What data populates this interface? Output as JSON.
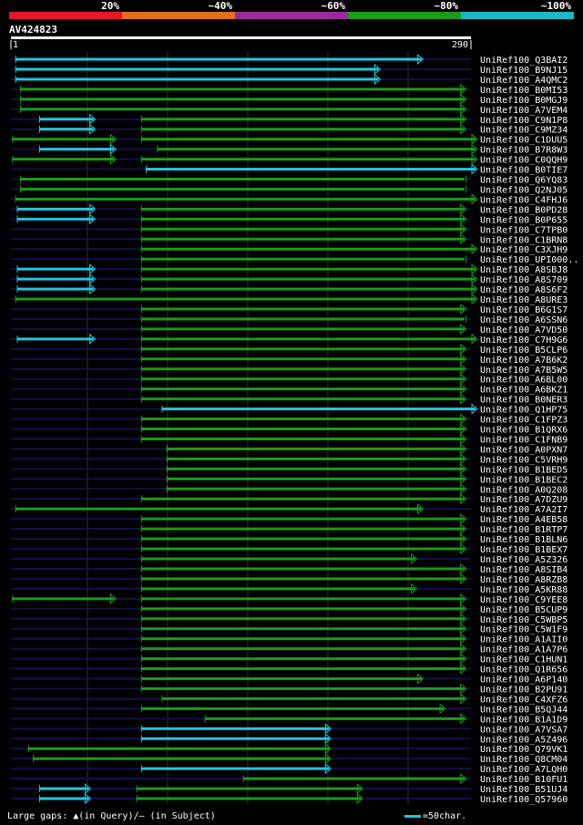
{
  "chart_data": {
    "type": "alignment",
    "title": "AV424823",
    "ruler": {
      "start": "1",
      "end": "290"
    },
    "identity_legend": [
      {
        "label": "20%",
        "color": "#e8152a"
      },
      {
        "label": "~40%",
        "color": "#e0701a"
      },
      {
        "label": "~60%",
        "color": "#9c2a9c"
      },
      {
        "label": "~80%",
        "color": "#1c9a1c"
      },
      {
        "label": "~100%",
        "color": "#1ab8c8"
      }
    ],
    "colors": {
      "green": "#1c9a1c",
      "cyan": "#22c6dd",
      "navy": "#12124a",
      "grid": "#333333"
    },
    "hits": [
      {
        "name": "UniRef100_Q3BAI2",
        "segs": [
          [
            4,
            260,
            "c",
            "a"
          ]
        ]
      },
      {
        "name": "UniRef100_B9NJ15",
        "segs": [
          [
            4,
            233,
            "c",
            "a"
          ]
        ]
      },
      {
        "name": "UniRef100_A4QMC2",
        "segs": [
          [
            4,
            233,
            "c",
            "a"
          ]
        ]
      },
      {
        "name": "UniRef100_B0MI53",
        "segs": [
          [
            7,
            287,
            "g",
            "a"
          ]
        ]
      },
      {
        "name": "UniRef100_B0MGJ9",
        "segs": [
          [
            7,
            287,
            "g",
            "a"
          ]
        ]
      },
      {
        "name": "UniRef100_A7VEM4",
        "segs": [
          [
            7,
            287,
            "g",
            "a"
          ]
        ]
      },
      {
        "name": "UniRef100_C9N1P8",
        "segs": [
          [
            19,
            54,
            "c",
            "a"
          ],
          [
            83,
            287,
            "g",
            "a"
          ]
        ]
      },
      {
        "name": "UniRef100_C9MZ34",
        "segs": [
          [
            19,
            54,
            "c",
            "a"
          ],
          [
            83,
            287,
            "g",
            "a"
          ]
        ]
      },
      {
        "name": "UniRef100_C1DUU5",
        "segs": [
          [
            2,
            67,
            "g",
            "a"
          ],
          [
            83,
            294,
            "g",
            "a"
          ]
        ]
      },
      {
        "name": "UniRef100_B7R8W3",
        "segs": [
          [
            19,
            67,
            "c",
            "a"
          ],
          [
            93,
            294,
            "g",
            "a"
          ]
        ]
      },
      {
        "name": "UniRef100_C0QQH9",
        "segs": [
          [
            2,
            67,
            "g",
            "a"
          ],
          [
            83,
            294,
            "g",
            "a"
          ]
        ]
      },
      {
        "name": "UniRef100_B0TIE7",
        "segs": [
          [
            86,
            294,
            "c",
            "a"
          ]
        ]
      },
      {
        "name": "UniRef100_Q6YQ83",
        "segs": [
          [
            7,
            287,
            "g",
            "t"
          ]
        ]
      },
      {
        "name": "UniRef100_Q2NJ05",
        "segs": [
          [
            7,
            287,
            "g",
            "t"
          ]
        ]
      },
      {
        "name": "UniRef100_C4FHJ6",
        "segs": [
          [
            4,
            294,
            "g",
            "a"
          ]
        ]
      },
      {
        "name": "UniRef100_B0PD28",
        "segs": [
          [
            5,
            54,
            "c",
            "a"
          ],
          [
            83,
            287,
            "g",
            "a"
          ]
        ]
      },
      {
        "name": "UniRef100_B0P655",
        "segs": [
          [
            5,
            54,
            "c",
            "a"
          ],
          [
            83,
            287,
            "g",
            "a"
          ]
        ]
      },
      {
        "name": "UniRef100_C7TPB0",
        "segs": [
          [
            83,
            287,
            "g",
            "a"
          ]
        ]
      },
      {
        "name": "UniRef100_C1BRN8",
        "segs": [
          [
            83,
            287,
            "g",
            "a"
          ]
        ]
      },
      {
        "name": "UniRef100_C3XJH9",
        "segs": [
          [
            83,
            294,
            "g",
            "a"
          ]
        ]
      },
      {
        "name": "UniRef100_UPI000..",
        "segs": [
          [
            83,
            287,
            "g",
            "t"
          ]
        ]
      },
      {
        "name": "UniRef100_A8SBJ8",
        "segs": [
          [
            5,
            54,
            "c",
            "a"
          ],
          [
            83,
            294,
            "g",
            "a"
          ]
        ]
      },
      {
        "name": "UniRef100_A8S709",
        "segs": [
          [
            5,
            54,
            "c",
            "a"
          ],
          [
            83,
            294,
            "g",
            "a"
          ]
        ]
      },
      {
        "name": "UniRef100_A8S6F2",
        "segs": [
          [
            5,
            54,
            "c",
            "a"
          ],
          [
            83,
            294,
            "g",
            "a"
          ]
        ]
      },
      {
        "name": "UniRef100_A8URE3",
        "segs": [
          [
            4,
            294,
            "g",
            "a"
          ]
        ]
      },
      {
        "name": "UniRef100_B6G1S7",
        "segs": [
          [
            83,
            287,
            "g",
            "a"
          ]
        ]
      },
      {
        "name": "UniRef100_A6SSN6",
        "segs": [
          [
            83,
            287,
            "g",
            "t"
          ]
        ]
      },
      {
        "name": "UniRef100_A7VD50",
        "segs": [
          [
            83,
            287,
            "g",
            "a"
          ]
        ]
      },
      {
        "name": "UniRef100_C7H9G6",
        "segs": [
          [
            5,
            54,
            "c",
            "a"
          ],
          [
            83,
            294,
            "g",
            "a"
          ]
        ]
      },
      {
        "name": "UniRef100_B5CLP6",
        "segs": [
          [
            83,
            287,
            "g",
            "a"
          ]
        ]
      },
      {
        "name": "UniRef100_A7B6K2",
        "segs": [
          [
            83,
            287,
            "g",
            "a"
          ]
        ]
      },
      {
        "name": "UniRef100_A7B5W5",
        "segs": [
          [
            83,
            287,
            "g",
            "a"
          ]
        ]
      },
      {
        "name": "UniRef100_A6BL00",
        "segs": [
          [
            83,
            287,
            "g",
            "a"
          ]
        ]
      },
      {
        "name": "UniRef100_A6BKZ1",
        "segs": [
          [
            83,
            287,
            "g",
            "a"
          ]
        ]
      },
      {
        "name": "UniRef100_B0NER3",
        "segs": [
          [
            83,
            287,
            "g",
            "a"
          ]
        ]
      },
      {
        "name": "UniRef100_Q1HP75",
        "segs": [
          [
            96,
            294,
            "c",
            "a"
          ]
        ]
      },
      {
        "name": "UniRef100_C1FPZ3",
        "segs": [
          [
            83,
            287,
            "g",
            "a"
          ]
        ]
      },
      {
        "name": "UniRef100_B1QRX6",
        "segs": [
          [
            83,
            287,
            "g",
            "a"
          ]
        ]
      },
      {
        "name": "UniRef100_C1FNB9",
        "segs": [
          [
            83,
            287,
            "g",
            "a"
          ]
        ]
      },
      {
        "name": "UniRef100_A0PXN7",
        "segs": [
          [
            99,
            287,
            "g",
            "a"
          ]
        ]
      },
      {
        "name": "UniRef100_C5VRH9",
        "segs": [
          [
            99,
            287,
            "g",
            "a"
          ]
        ]
      },
      {
        "name": "UniRef100_B1BED5",
        "segs": [
          [
            99,
            287,
            "g",
            "a"
          ]
        ]
      },
      {
        "name": "UniRef100_B1BEC2",
        "segs": [
          [
            99,
            287,
            "g",
            "a"
          ]
        ]
      },
      {
        "name": "UniRef100_A0Q208",
        "segs": [
          [
            99,
            287,
            "g",
            "a"
          ]
        ]
      },
      {
        "name": "UniRef100_A7DZU9",
        "segs": [
          [
            83,
            287,
            "g",
            "a"
          ]
        ]
      },
      {
        "name": "UniRef100_A7A2I7",
        "segs": [
          [
            4,
            260,
            "g",
            "a"
          ]
        ]
      },
      {
        "name": "UniRef100_A4EB58",
        "segs": [
          [
            83,
            287,
            "g",
            "a"
          ]
        ]
      },
      {
        "name": "UniRef100_B1RTP7",
        "segs": [
          [
            83,
            287,
            "g",
            "a"
          ]
        ]
      },
      {
        "name": "UniRef100_B1BLN6",
        "segs": [
          [
            83,
            287,
            "g",
            "a"
          ]
        ]
      },
      {
        "name": "UniRef100_B1BEX7",
        "segs": [
          [
            83,
            287,
            "g",
            "a"
          ]
        ]
      },
      {
        "name": "UniRef100_A5Z326",
        "segs": [
          [
            83,
            256,
            "g",
            "a"
          ]
        ]
      },
      {
        "name": "UniRef100_A8SIB4",
        "segs": [
          [
            83,
            287,
            "g",
            "a"
          ]
        ]
      },
      {
        "name": "UniRef100_A8RZB8",
        "segs": [
          [
            83,
            287,
            "g",
            "a"
          ]
        ]
      },
      {
        "name": "UniRef100_A5KR88",
        "segs": [
          [
            83,
            256,
            "g",
            "a"
          ]
        ]
      },
      {
        "name": "UniRef100_C9YEE8",
        "segs": [
          [
            2,
            67,
            "g",
            "a"
          ],
          [
            83,
            287,
            "g",
            "a"
          ]
        ]
      },
      {
        "name": "UniRef100_B5CUP9",
        "segs": [
          [
            83,
            287,
            "g",
            "a"
          ]
        ]
      },
      {
        "name": "UniRef100_C5WBP5",
        "segs": [
          [
            83,
            287,
            "g",
            "a"
          ]
        ]
      },
      {
        "name": "UniRef100_C5W1F9",
        "segs": [
          [
            83,
            287,
            "g",
            "a"
          ]
        ]
      },
      {
        "name": "UniRef100_A1AII0",
        "segs": [
          [
            83,
            287,
            "g",
            "a"
          ]
        ]
      },
      {
        "name": "UniRef100_A1A7P6",
        "segs": [
          [
            83,
            287,
            "g",
            "a"
          ]
        ]
      },
      {
        "name": "UniRef100_C1HUN1",
        "segs": [
          [
            83,
            287,
            "g",
            "a"
          ]
        ]
      },
      {
        "name": "UniRef100_Q1R656",
        "segs": [
          [
            83,
            287,
            "g",
            "a"
          ]
        ]
      },
      {
        "name": "UniRef100_A6P140",
        "segs": [
          [
            83,
            260,
            "g",
            "a"
          ]
        ]
      },
      {
        "name": "UniRef100_B2PU91",
        "segs": [
          [
            83,
            287,
            "g",
            "a"
          ]
        ]
      },
      {
        "name": "UniRef100_C4XFZ6",
        "segs": [
          [
            96,
            287,
            "g",
            "a"
          ]
        ]
      },
      {
        "name": "UniRef100_B5QJ44",
        "segs": [
          [
            83,
            274,
            "g",
            "a"
          ]
        ]
      },
      {
        "name": "UniRef100_B1A1D9",
        "segs": [
          [
            123,
            287,
            "g",
            "a"
          ]
        ]
      },
      {
        "name": "UniRef100_A7VSA7",
        "segs": [
          [
            83,
            202,
            "c",
            "a"
          ]
        ]
      },
      {
        "name": "UniRef100_A5Z496",
        "segs": [
          [
            83,
            202,
            "c",
            "a"
          ]
        ]
      },
      {
        "name": "UniRef100_Q79VK1",
        "segs": [
          [
            12,
            202,
            "g",
            "a"
          ]
        ]
      },
      {
        "name": "UniRef100_Q8CM04",
        "segs": [
          [
            15,
            202,
            "g",
            "a"
          ]
        ]
      },
      {
        "name": "UniRef100_A7LQH0",
        "segs": [
          [
            83,
            202,
            "c",
            "a"
          ]
        ]
      },
      {
        "name": "UniRef100_B10FU1",
        "segs": [
          [
            147,
            287,
            "g",
            "a"
          ]
        ]
      },
      {
        "name": "UniRef100_B51UJ4",
        "segs": [
          [
            19,
            51,
            "c",
            "a"
          ],
          [
            80,
            222,
            "g",
            "a"
          ]
        ]
      },
      {
        "name": "UniRef100_Q57960",
        "segs": [
          [
            19,
            51,
            "c",
            "a"
          ],
          [
            80,
            222,
            "g",
            "a"
          ]
        ]
      }
    ]
  },
  "footer": {
    "gaps_label": "Large gaps: ▲(in Query)/– (in Subject)",
    "scale_label": "=50char."
  }
}
